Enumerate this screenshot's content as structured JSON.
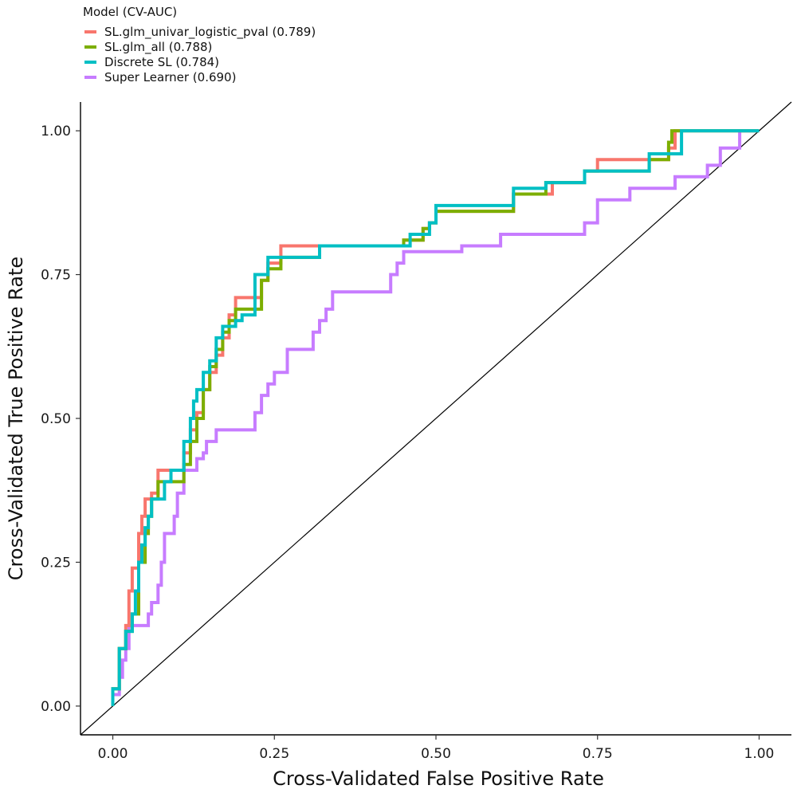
{
  "chart_data": {
    "type": "line",
    "xlabel": "Cross-Validated False Positive Rate",
    "ylabel": "Cross-Validated True Positive Rate",
    "xlim": [
      -0.05,
      1.05
    ],
    "ylim": [
      -0.05,
      1.05
    ],
    "x_ticks": [
      0,
      0.25,
      0.5,
      0.75,
      1.0
    ],
    "x_tick_labels": [
      "0.00",
      "0.25",
      "0.50",
      "0.75",
      "1.00"
    ],
    "y_ticks": [
      0,
      0.25,
      0.5,
      0.75,
      1.0
    ],
    "y_tick_labels": [
      "0.00",
      "0.25",
      "0.50",
      "0.75",
      "1.00"
    ],
    "grid": false,
    "legend": {
      "title": "Model (CV-AUC)",
      "position": "top-left",
      "entries": [
        "SL.glm_univar_logistic_pval (0.789)",
        "SL.glm_all (0.788)",
        "Discrete SL (0.784)",
        "Super Learner (0.690)"
      ]
    },
    "reference_line": {
      "from": [
        -0.05,
        -0.05
      ],
      "to": [
        1.05,
        1.05
      ],
      "color": "#000000"
    },
    "series": [
      {
        "name": "SL.glm_univar_logistic_pval (0.789)",
        "color": "#F8766D",
        "points": [
          [
            0,
            0
          ],
          [
            0,
            0.03
          ],
          [
            0.01,
            0.03
          ],
          [
            0.01,
            0.1
          ],
          [
            0.02,
            0.1
          ],
          [
            0.02,
            0.14
          ],
          [
            0.025,
            0.14
          ],
          [
            0.025,
            0.2
          ],
          [
            0.03,
            0.2
          ],
          [
            0.03,
            0.24
          ],
          [
            0.04,
            0.24
          ],
          [
            0.04,
            0.3
          ],
          [
            0.045,
            0.3
          ],
          [
            0.045,
            0.33
          ],
          [
            0.05,
            0.33
          ],
          [
            0.05,
            0.36
          ],
          [
            0.06,
            0.36
          ],
          [
            0.06,
            0.37
          ],
          [
            0.07,
            0.37
          ],
          [
            0.07,
            0.41
          ],
          [
            0.11,
            0.41
          ],
          [
            0.11,
            0.44
          ],
          [
            0.12,
            0.44
          ],
          [
            0.12,
            0.48
          ],
          [
            0.13,
            0.48
          ],
          [
            0.13,
            0.51
          ],
          [
            0.14,
            0.51
          ],
          [
            0.14,
            0.55
          ],
          [
            0.15,
            0.55
          ],
          [
            0.15,
            0.58
          ],
          [
            0.16,
            0.58
          ],
          [
            0.16,
            0.61
          ],
          [
            0.17,
            0.61
          ],
          [
            0.17,
            0.64
          ],
          [
            0.18,
            0.64
          ],
          [
            0.18,
            0.68
          ],
          [
            0.19,
            0.68
          ],
          [
            0.19,
            0.71
          ],
          [
            0.23,
            0.71
          ],
          [
            0.23,
            0.74
          ],
          [
            0.24,
            0.74
          ],
          [
            0.24,
            0.77
          ],
          [
            0.26,
            0.77
          ],
          [
            0.26,
            0.8
          ],
          [
            0.45,
            0.8
          ],
          [
            0.45,
            0.81
          ],
          [
            0.48,
            0.81
          ],
          [
            0.48,
            0.83
          ],
          [
            0.49,
            0.83
          ],
          [
            0.49,
            0.84
          ],
          [
            0.5,
            0.84
          ],
          [
            0.5,
            0.86
          ],
          [
            0.62,
            0.86
          ],
          [
            0.62,
            0.89
          ],
          [
            0.68,
            0.89
          ],
          [
            0.68,
            0.91
          ],
          [
            0.73,
            0.91
          ],
          [
            0.73,
            0.93
          ],
          [
            0.75,
            0.93
          ],
          [
            0.75,
            0.95
          ],
          [
            0.86,
            0.95
          ],
          [
            0.86,
            0.97
          ],
          [
            0.87,
            0.97
          ],
          [
            0.87,
            1.0
          ],
          [
            0.98,
            1.0
          ],
          [
            1.0,
            1.0
          ]
        ]
      },
      {
        "name": "SL.glm_all (0.788)",
        "color": "#7CAE00",
        "points": [
          [
            0,
            0
          ],
          [
            0,
            0.03
          ],
          [
            0.01,
            0.03
          ],
          [
            0.01,
            0.1
          ],
          [
            0.02,
            0.1
          ],
          [
            0.02,
            0.13
          ],
          [
            0.03,
            0.13
          ],
          [
            0.03,
            0.16
          ],
          [
            0.04,
            0.16
          ],
          [
            0.04,
            0.25
          ],
          [
            0.05,
            0.25
          ],
          [
            0.05,
            0.3
          ],
          [
            0.055,
            0.3
          ],
          [
            0.055,
            0.33
          ],
          [
            0.06,
            0.33
          ],
          [
            0.06,
            0.36
          ],
          [
            0.07,
            0.36
          ],
          [
            0.07,
            0.39
          ],
          [
            0.11,
            0.39
          ],
          [
            0.11,
            0.42
          ],
          [
            0.12,
            0.42
          ],
          [
            0.12,
            0.46
          ],
          [
            0.13,
            0.46
          ],
          [
            0.13,
            0.5
          ],
          [
            0.14,
            0.5
          ],
          [
            0.14,
            0.55
          ],
          [
            0.15,
            0.55
          ],
          [
            0.15,
            0.59
          ],
          [
            0.16,
            0.59
          ],
          [
            0.16,
            0.62
          ],
          [
            0.17,
            0.62
          ],
          [
            0.17,
            0.65
          ],
          [
            0.18,
            0.65
          ],
          [
            0.18,
            0.67
          ],
          [
            0.19,
            0.67
          ],
          [
            0.19,
            0.69
          ],
          [
            0.23,
            0.69
          ],
          [
            0.23,
            0.74
          ],
          [
            0.24,
            0.74
          ],
          [
            0.24,
            0.76
          ],
          [
            0.26,
            0.76
          ],
          [
            0.26,
            0.78
          ],
          [
            0.32,
            0.78
          ],
          [
            0.32,
            0.8
          ],
          [
            0.45,
            0.8
          ],
          [
            0.45,
            0.81
          ],
          [
            0.48,
            0.81
          ],
          [
            0.48,
            0.83
          ],
          [
            0.49,
            0.83
          ],
          [
            0.49,
            0.84
          ],
          [
            0.5,
            0.84
          ],
          [
            0.5,
            0.86
          ],
          [
            0.62,
            0.86
          ],
          [
            0.62,
            0.89
          ],
          [
            0.67,
            0.89
          ],
          [
            0.67,
            0.91
          ],
          [
            0.73,
            0.91
          ],
          [
            0.73,
            0.93
          ],
          [
            0.83,
            0.93
          ],
          [
            0.83,
            0.95
          ],
          [
            0.86,
            0.95
          ],
          [
            0.86,
            0.98
          ],
          [
            0.865,
            0.98
          ],
          [
            0.865,
            1.0
          ],
          [
            0.98,
            1.0
          ],
          [
            1.0,
            1.0
          ]
        ]
      },
      {
        "name": "Discrete SL (0.784)",
        "color": "#00BFC4",
        "points": [
          [
            0,
            0
          ],
          [
            0,
            0.03
          ],
          [
            0.01,
            0.03
          ],
          [
            0.01,
            0.1
          ],
          [
            0.02,
            0.1
          ],
          [
            0.02,
            0.13
          ],
          [
            0.03,
            0.13
          ],
          [
            0.03,
            0.16
          ],
          [
            0.035,
            0.16
          ],
          [
            0.035,
            0.2
          ],
          [
            0.04,
            0.2
          ],
          [
            0.04,
            0.25
          ],
          [
            0.045,
            0.25
          ],
          [
            0.045,
            0.28
          ],
          [
            0.05,
            0.28
          ],
          [
            0.05,
            0.31
          ],
          [
            0.055,
            0.31
          ],
          [
            0.055,
            0.33
          ],
          [
            0.06,
            0.33
          ],
          [
            0.06,
            0.36
          ],
          [
            0.08,
            0.36
          ],
          [
            0.08,
            0.39
          ],
          [
            0.09,
            0.39
          ],
          [
            0.09,
            0.41
          ],
          [
            0.11,
            0.41
          ],
          [
            0.11,
            0.46
          ],
          [
            0.12,
            0.46
          ],
          [
            0.12,
            0.5
          ],
          [
            0.125,
            0.5
          ],
          [
            0.125,
            0.53
          ],
          [
            0.13,
            0.53
          ],
          [
            0.13,
            0.55
          ],
          [
            0.14,
            0.55
          ],
          [
            0.14,
            0.58
          ],
          [
            0.15,
            0.58
          ],
          [
            0.15,
            0.6
          ],
          [
            0.16,
            0.6
          ],
          [
            0.16,
            0.64
          ],
          [
            0.17,
            0.64
          ],
          [
            0.17,
            0.66
          ],
          [
            0.19,
            0.66
          ],
          [
            0.19,
            0.67
          ],
          [
            0.2,
            0.67
          ],
          [
            0.2,
            0.68
          ],
          [
            0.22,
            0.68
          ],
          [
            0.22,
            0.75
          ],
          [
            0.24,
            0.75
          ],
          [
            0.24,
            0.78
          ],
          [
            0.32,
            0.78
          ],
          [
            0.32,
            0.8
          ],
          [
            0.46,
            0.8
          ],
          [
            0.46,
            0.82
          ],
          [
            0.49,
            0.82
          ],
          [
            0.49,
            0.84
          ],
          [
            0.5,
            0.84
          ],
          [
            0.5,
            0.87
          ],
          [
            0.62,
            0.87
          ],
          [
            0.62,
            0.9
          ],
          [
            0.67,
            0.9
          ],
          [
            0.67,
            0.91
          ],
          [
            0.73,
            0.91
          ],
          [
            0.73,
            0.93
          ],
          [
            0.83,
            0.93
          ],
          [
            0.83,
            0.96
          ],
          [
            0.88,
            0.96
          ],
          [
            0.88,
            1.0
          ],
          [
            0.98,
            1.0
          ],
          [
            1.0,
            1.0
          ]
        ]
      },
      {
        "name": "Super Learner (0.690)",
        "color": "#C77CFF",
        "points": [
          [
            0,
            0
          ],
          [
            0,
            0.02
          ],
          [
            0.01,
            0.02
          ],
          [
            0.01,
            0.05
          ],
          [
            0.015,
            0.05
          ],
          [
            0.015,
            0.08
          ],
          [
            0.02,
            0.08
          ],
          [
            0.02,
            0.1
          ],
          [
            0.025,
            0.1
          ],
          [
            0.025,
            0.14
          ],
          [
            0.055,
            0.14
          ],
          [
            0.055,
            0.16
          ],
          [
            0.06,
            0.16
          ],
          [
            0.06,
            0.18
          ],
          [
            0.07,
            0.18
          ],
          [
            0.07,
            0.21
          ],
          [
            0.075,
            0.21
          ],
          [
            0.075,
            0.25
          ],
          [
            0.08,
            0.25
          ],
          [
            0.08,
            0.3
          ],
          [
            0.095,
            0.3
          ],
          [
            0.095,
            0.33
          ],
          [
            0.1,
            0.33
          ],
          [
            0.1,
            0.37
          ],
          [
            0.11,
            0.37
          ],
          [
            0.11,
            0.41
          ],
          [
            0.13,
            0.41
          ],
          [
            0.13,
            0.43
          ],
          [
            0.14,
            0.43
          ],
          [
            0.14,
            0.44
          ],
          [
            0.145,
            0.44
          ],
          [
            0.145,
            0.46
          ],
          [
            0.16,
            0.46
          ],
          [
            0.16,
            0.48
          ],
          [
            0.22,
            0.48
          ],
          [
            0.22,
            0.51
          ],
          [
            0.23,
            0.51
          ],
          [
            0.23,
            0.54
          ],
          [
            0.24,
            0.54
          ],
          [
            0.24,
            0.56
          ],
          [
            0.25,
            0.56
          ],
          [
            0.25,
            0.58
          ],
          [
            0.27,
            0.58
          ],
          [
            0.27,
            0.62
          ],
          [
            0.31,
            0.62
          ],
          [
            0.31,
            0.65
          ],
          [
            0.32,
            0.65
          ],
          [
            0.32,
            0.67
          ],
          [
            0.33,
            0.67
          ],
          [
            0.33,
            0.69
          ],
          [
            0.34,
            0.69
          ],
          [
            0.34,
            0.72
          ],
          [
            0.43,
            0.72
          ],
          [
            0.43,
            0.75
          ],
          [
            0.44,
            0.75
          ],
          [
            0.44,
            0.77
          ],
          [
            0.45,
            0.77
          ],
          [
            0.45,
            0.79
          ],
          [
            0.54,
            0.79
          ],
          [
            0.54,
            0.8
          ],
          [
            0.6,
            0.8
          ],
          [
            0.6,
            0.82
          ],
          [
            0.73,
            0.82
          ],
          [
            0.73,
            0.84
          ],
          [
            0.75,
            0.84
          ],
          [
            0.75,
            0.88
          ],
          [
            0.8,
            0.88
          ],
          [
            0.8,
            0.9
          ],
          [
            0.87,
            0.9
          ],
          [
            0.87,
            0.92
          ],
          [
            0.92,
            0.92
          ],
          [
            0.92,
            0.94
          ],
          [
            0.94,
            0.94
          ],
          [
            0.94,
            0.97
          ],
          [
            0.97,
            0.97
          ],
          [
            0.97,
            1.0
          ],
          [
            1.0,
            1.0
          ]
        ]
      }
    ]
  }
}
